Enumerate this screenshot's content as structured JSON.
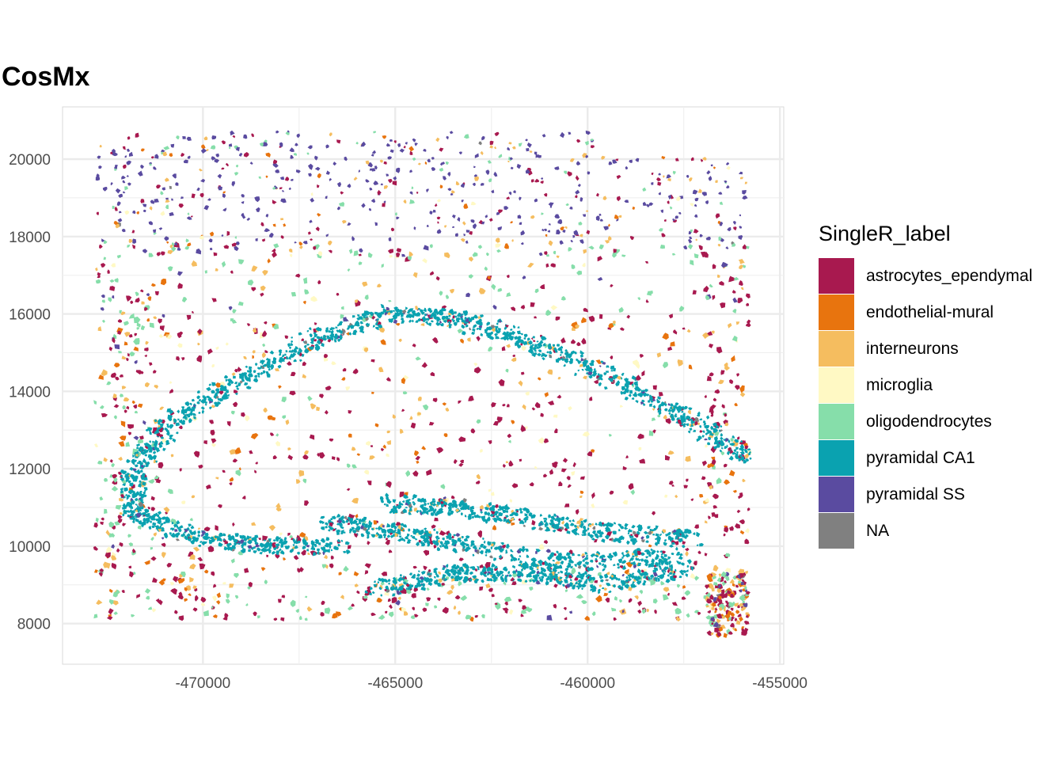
{
  "chart_data": {
    "type": "scatter",
    "title": "CosMx",
    "xlabel": "",
    "ylabel": "",
    "xlim": [
      -473650,
      -454900
    ],
    "ylim": [
      6950,
      21350
    ],
    "x_ticks": [
      -470000,
      -465000,
      -460000,
      -455000
    ],
    "y_ticks": [
      8000,
      10000,
      12000,
      14000,
      16000,
      18000,
      20000
    ],
    "x_tick_labels": [
      "-470000",
      "-465000",
      "-460000",
      "-455000"
    ],
    "y_tick_labels": [
      "8000",
      "10000",
      "12000",
      "14000",
      "16000",
      "18000",
      "20000"
    ],
    "grid": true,
    "legend": {
      "title": "SingleR_label",
      "position": "right",
      "items": [
        {
          "label": "astrocytes_ependymal",
          "color": "#A8194F"
        },
        {
          "label": "endothelial-mural",
          "color": "#E8740E"
        },
        {
          "label": "interneurons",
          "color": "#F5BD5F"
        },
        {
          "label": "microglia",
          "color": "#FFF9C4"
        },
        {
          "label": "oligodendrocytes",
          "color": "#86DEAA"
        },
        {
          "label": "pyramidal CA1",
          "color": "#0AA2B0"
        },
        {
          "label": "pyramidal SS",
          "color": "#5A4BA0"
        },
        {
          "label": "NA",
          "color": "#808080"
        }
      ]
    }
  }
}
